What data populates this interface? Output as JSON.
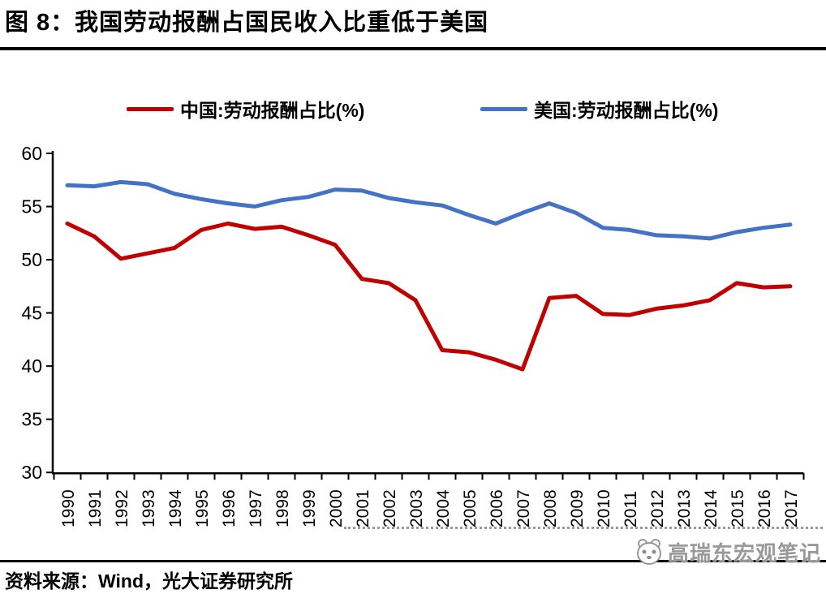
{
  "title": "图 8：我国劳动报酬占国民收入比重低于美国",
  "source_note": "资料来源：Wind，光大证券研究所",
  "watermark": "高瑞东宏观笔记",
  "colors": {
    "china": "#C00000",
    "us": "#4472C4",
    "axis": "#000000",
    "watermark": "#888888"
  },
  "chart_data": {
    "type": "line",
    "x": [
      1990,
      1991,
      1992,
      1993,
      1994,
      1995,
      1996,
      1997,
      1998,
      1999,
      2000,
      2001,
      2002,
      2003,
      2004,
      2005,
      2006,
      2007,
      2008,
      2009,
      2010,
      2011,
      2012,
      2013,
      2014,
      2015,
      2016,
      2017
    ],
    "series": [
      {
        "name": "中国:劳动报酬占比(%)",
        "color_key": "china",
        "values": [
          53.4,
          52.2,
          50.1,
          50.6,
          51.1,
          52.8,
          53.4,
          52.9,
          53.1,
          52.3,
          51.4,
          48.2,
          47.8,
          46.2,
          41.5,
          41.3,
          40.6,
          39.7,
          46.4,
          46.6,
          44.9,
          44.8,
          45.4,
          45.7,
          46.2,
          47.8,
          47.4,
          47.5
        ]
      },
      {
        "name": "美国:劳动报酬占比(%)",
        "color_key": "us",
        "values": [
          57.0,
          56.9,
          57.3,
          57.1,
          56.2,
          55.7,
          55.3,
          55.0,
          55.6,
          55.9,
          56.6,
          56.5,
          55.8,
          55.4,
          55.1,
          54.2,
          53.4,
          54.4,
          55.3,
          54.4,
          53.0,
          52.8,
          52.3,
          52.2,
          52.0,
          52.6,
          53.0,
          53.3
        ]
      }
    ],
    "title": "",
    "xlabel": "",
    "ylabel": "",
    "ylim": [
      30,
      60
    ],
    "yticks": [
      30,
      35,
      40,
      45,
      50,
      55,
      60
    ],
    "grid": false,
    "legend_position": "top"
  }
}
